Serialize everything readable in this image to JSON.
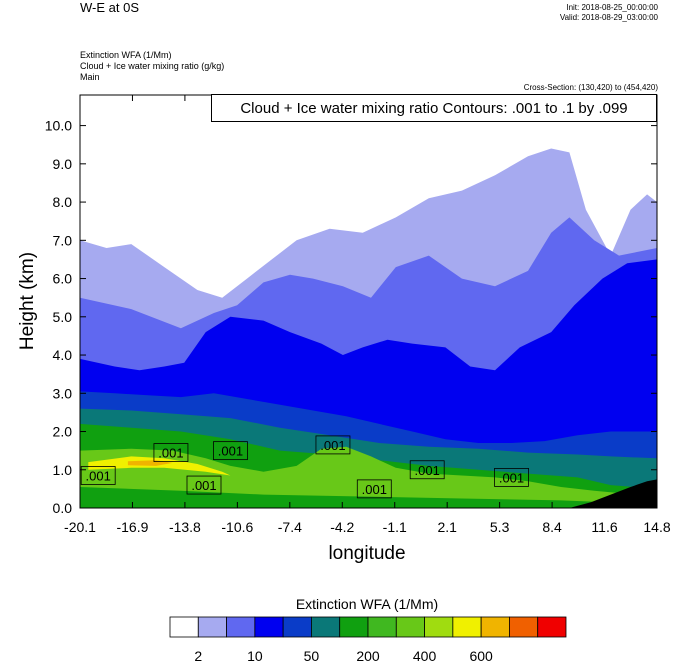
{
  "header": {
    "title": "W-E at 0S",
    "init": "Init: 2018-08-25_00:00:00",
    "valid": "Valid: 2018-08-29_03:00:00",
    "field_lines": [
      "Extinction WFA   (1/Mm)",
      "Cloud + Ice water mixing ratio   (g/kg)",
      "Main"
    ],
    "cross_section": "Cross-Section: (130,420) to (454,420)",
    "contour_info": "Cloud + Ice water mixing ratio Contours: .001 to .1 by .099"
  },
  "chart_data": {
    "type": "heatmap",
    "xlabel": "longitude",
    "ylabel": "Height (km)",
    "x_ticks": [
      "-20.1",
      "-16.9",
      "-13.8",
      "-10.6",
      "-7.4",
      "-4.2",
      "-1.1",
      "2.1",
      "5.3",
      "8.4",
      "11.6",
      "14.8"
    ],
    "y_ticks": [
      "0.0",
      "1.0",
      "2.0",
      "3.0",
      "4.0",
      "5.0",
      "6.0",
      "7.0",
      "8.0",
      "9.0",
      "10.0"
    ],
    "xlim": [
      -20.1,
      14.8
    ],
    "ylim": [
      0,
      10.8
    ],
    "colorbar": {
      "title": "Extinction WFA  (1/Mm)",
      "colors": [
        "#ffffff",
        "#a6aaf0",
        "#6068f0",
        "#0000f0",
        "#0a3cc8",
        "#0a7878",
        "#10a010",
        "#40b820",
        "#68c818",
        "#a0dc10",
        "#f0f000",
        "#f0b400",
        "#f06000",
        "#f00000"
      ],
      "labels": [
        "2",
        "10",
        "50",
        "200",
        "400",
        "600"
      ]
    },
    "contour_labels": [
      {
        "text": ".001",
        "lon": -14.6,
        "h": 1.45
      },
      {
        "text": ".001",
        "lon": -11.0,
        "h": 1.5
      },
      {
        "text": ".001",
        "lon": -19.0,
        "h": 0.85
      },
      {
        "text": ".001",
        "lon": -12.6,
        "h": 0.6
      },
      {
        "text": ".001",
        "lon": -4.8,
        "h": 1.65
      },
      {
        "text": ".001",
        "lon": -2.3,
        "h": 0.5
      },
      {
        "text": ".001",
        "lon": 0.9,
        "h": 1.0
      },
      {
        "text": ".001",
        "lon": 6.0,
        "h": 0.8
      }
    ],
    "boundaries_km": [
      {
        "color": "#a6aaf0",
        "pts": [
          [
            -20.1,
            7.0
          ],
          [
            -18.5,
            6.8
          ],
          [
            -17,
            6.9
          ],
          [
            -15,
            6.3
          ],
          [
            -13,
            5.7
          ],
          [
            -11.5,
            5.5
          ],
          [
            -10,
            6.0
          ],
          [
            -8.5,
            6.5
          ],
          [
            -7,
            7.0
          ],
          [
            -5,
            7.3
          ],
          [
            -3,
            7.2
          ],
          [
            -1,
            7.6
          ],
          [
            1,
            8.1
          ],
          [
            3,
            8.3
          ],
          [
            5,
            8.7
          ],
          [
            7,
            9.2
          ],
          [
            8.4,
            9.4
          ],
          [
            9.5,
            9.3
          ],
          [
            10.5,
            7.8
          ],
          [
            12,
            6.6
          ],
          [
            13.2,
            7.8
          ],
          [
            14.2,
            8.2
          ],
          [
            14.8,
            8.0
          ]
        ]
      },
      {
        "color": "#6068f0",
        "pts": [
          [
            -20.1,
            5.5
          ],
          [
            -17,
            5.2
          ],
          [
            -14,
            4.7
          ],
          [
            -12,
            5.1
          ],
          [
            -10.6,
            5.3
          ],
          [
            -9,
            5.9
          ],
          [
            -7.4,
            6.1
          ],
          [
            -6,
            6.0
          ],
          [
            -4.2,
            5.8
          ],
          [
            -2.5,
            5.5
          ],
          [
            -1,
            6.3
          ],
          [
            1,
            6.6
          ],
          [
            3,
            6.0
          ],
          [
            5,
            5.8
          ],
          [
            7,
            6.2
          ],
          [
            8.4,
            7.2
          ],
          [
            9.5,
            7.6
          ],
          [
            11,
            7.0
          ],
          [
            12.5,
            6.6
          ],
          [
            14.8,
            6.8
          ]
        ]
      },
      {
        "color": "#0000f0",
        "pts": [
          [
            -20.1,
            3.9
          ],
          [
            -18,
            3.7
          ],
          [
            -16.5,
            3.6
          ],
          [
            -15,
            3.7
          ],
          [
            -13.8,
            3.8
          ],
          [
            -12.5,
            4.6
          ],
          [
            -11,
            5.0
          ],
          [
            -9,
            4.9
          ],
          [
            -7.4,
            4.6
          ],
          [
            -5.5,
            4.3
          ],
          [
            -4.2,
            4.0
          ],
          [
            -3,
            4.2
          ],
          [
            -1.5,
            4.4
          ],
          [
            0,
            4.3
          ],
          [
            2,
            4.2
          ],
          [
            3.5,
            3.7
          ],
          [
            5,
            3.6
          ],
          [
            6.5,
            4.2
          ],
          [
            8.4,
            4.6
          ],
          [
            9.8,
            5.3
          ],
          [
            11.5,
            6.0
          ],
          [
            13,
            6.4
          ],
          [
            14.8,
            6.5
          ]
        ]
      },
      {
        "color": "#0a3cc8",
        "pts": [
          [
            -20.1,
            3.05
          ],
          [
            -18,
            3.0
          ],
          [
            -16,
            2.95
          ],
          [
            -14,
            2.9
          ],
          [
            -12,
            3.0
          ],
          [
            -10,
            2.85
          ],
          [
            -8,
            2.7
          ],
          [
            -6,
            2.55
          ],
          [
            -4,
            2.4
          ],
          [
            -2,
            2.2
          ],
          [
            0,
            2.0
          ],
          [
            2,
            1.8
          ],
          [
            4,
            1.7
          ],
          [
            6,
            1.7
          ],
          [
            8,
            1.75
          ],
          [
            10,
            1.9
          ],
          [
            12,
            2.0
          ],
          [
            14.8,
            2.0
          ]
        ]
      },
      {
        "color": "#0a7878",
        "pts": [
          [
            -20.1,
            2.6
          ],
          [
            -17,
            2.55
          ],
          [
            -14,
            2.45
          ],
          [
            -11,
            2.35
          ],
          [
            -8,
            2.1
          ],
          [
            -5,
            1.9
          ],
          [
            -2,
            1.7
          ],
          [
            1,
            1.6
          ],
          [
            4,
            1.55
          ],
          [
            7,
            1.45
          ],
          [
            10,
            1.4
          ],
          [
            12,
            1.35
          ],
          [
            14.8,
            1.3
          ]
        ]
      },
      {
        "color": "#10a010",
        "pts": [
          [
            -20.1,
            2.2
          ],
          [
            -17,
            2.1
          ],
          [
            -14,
            2.0
          ],
          [
            -11,
            1.8
          ],
          [
            -8,
            1.5
          ],
          [
            -5,
            1.4
          ],
          [
            -2,
            1.25
          ],
          [
            1,
            1.1
          ],
          [
            4,
            1.0
          ],
          [
            7,
            0.9
          ],
          [
            10,
            0.8
          ],
          [
            12,
            0.6
          ],
          [
            14.8,
            0.5
          ]
        ]
      },
      {
        "color": "#68c818",
        "pts": [
          [
            -20.1,
            1.5
          ],
          [
            -17,
            1.55
          ],
          [
            -14.5,
            1.5
          ],
          [
            -12.5,
            1.3
          ],
          [
            -11,
            1.1
          ],
          [
            -9,
            0.95
          ],
          [
            -7,
            1.1
          ],
          [
            -5.5,
            1.55
          ],
          [
            -4,
            1.6
          ],
          [
            -2.5,
            1.35
          ],
          [
            -1,
            1.05
          ],
          [
            1,
            0.9
          ],
          [
            3,
            0.85
          ],
          [
            5,
            0.8
          ],
          [
            7,
            0.7
          ],
          [
            9,
            0.55
          ],
          [
            11,
            0.45
          ],
          [
            14.8,
            0.3
          ]
        ]
      },
      {
        "color": "#f0f000",
        "pts": [
          [
            -19.6,
            1.2
          ],
          [
            -17,
            1.35
          ],
          [
            -15,
            1.3
          ],
          [
            -13,
            1.15
          ],
          [
            -11.5,
            0.95
          ],
          [
            -11,
            0.85
          ],
          [
            -12.5,
            0.95
          ],
          [
            -15,
            1.05
          ],
          [
            -17,
            1.05
          ],
          [
            -19.6,
            1.0
          ]
        ]
      },
      {
        "color": "#f0b400",
        "pts": [
          [
            -17.2,
            1.22
          ],
          [
            -15.5,
            1.25
          ],
          [
            -14.5,
            1.18
          ],
          [
            -15.5,
            1.1
          ],
          [
            -17.2,
            1.12
          ]
        ]
      }
    ]
  }
}
